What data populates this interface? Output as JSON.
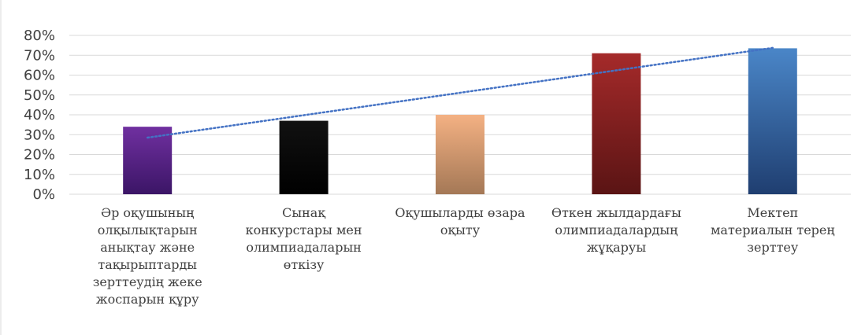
{
  "chart_data": {
    "type": "bar",
    "title": "",
    "xlabel": "",
    "ylabel": "",
    "categories": [
      "Әр оқушының\nолқылықтарын\nанықтау және\nтақырыптарды\nзерттеудің жеке\nжоспарын құру",
      "Сынақ\nконкурстары мен\nолимпиадаларын\nөткізу",
      "Оқушыларды өзара\nоқыту",
      "Өткен жылдардағы\nолимпиадалардың\nжұқаруы",
      "Мектеп\nматериалын терең\nзерттеу"
    ],
    "values": [
      34,
      37,
      40,
      71,
      73.5
    ],
    "ylim": [
      0,
      80
    ],
    "yticks": [
      "0%",
      "10%",
      "20%",
      "30%",
      "40%",
      "50%",
      "60%",
      "70%",
      "80%"
    ],
    "grid": true,
    "legend": "none",
    "trendline": {
      "type": "linear",
      "style": "dotted",
      "color": "#4472C4"
    },
    "bar_colors": [
      [
        "#7030A0",
        "#3B1566"
      ],
      [
        "#111111",
        "#000000"
      ],
      [
        "#F4B183",
        "#A47856"
      ],
      [
        "#A52A2A",
        "#5A1414"
      ],
      [
        "#4A86C8",
        "#1F3E70"
      ]
    ]
  }
}
